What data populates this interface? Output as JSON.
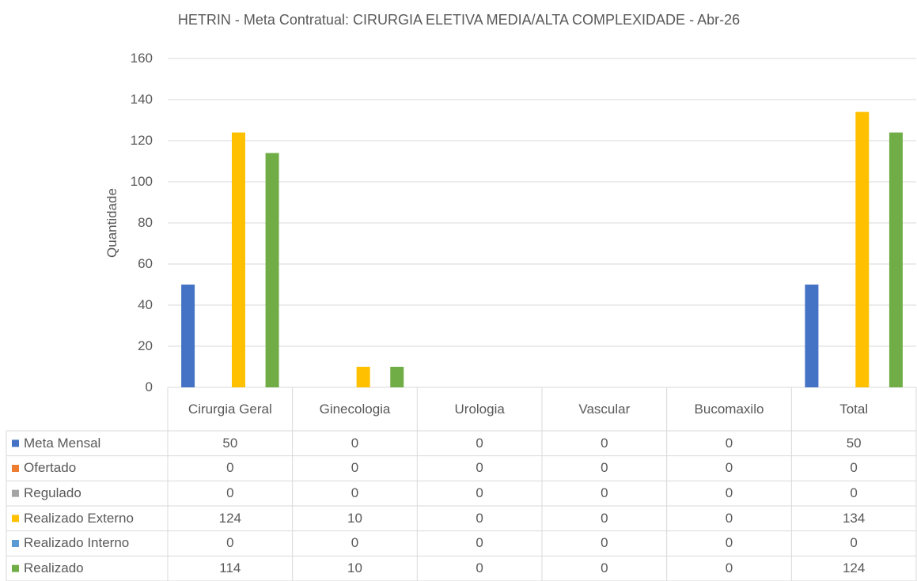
{
  "chart_data": {
    "type": "bar",
    "title": "HETRIN - Meta Contratual: CIRURGIA ELETIVA MEDIA/ALTA COMPLEXIDADE - Abr-26",
    "y_label": "Quantidade",
    "categories": [
      "Cirurgia Geral",
      "Ginecologia",
      "Urologia",
      "Vascular",
      "Bucomaxilo",
      "Total"
    ],
    "series": [
      {
        "name": "Meta Mensal",
        "color": "#4472c4",
        "values": [
          50,
          0,
          0,
          0,
          0,
          50
        ]
      },
      {
        "name": "Ofertado",
        "color": "#ed7d31",
        "values": [
          0,
          0,
          0,
          0,
          0,
          0
        ]
      },
      {
        "name": "Regulado",
        "color": "#a5a5a5",
        "values": [
          0,
          0,
          0,
          0,
          0,
          0
        ]
      },
      {
        "name": "Realizado Externo",
        "color": "#ffc000",
        "values": [
          124,
          10,
          0,
          0,
          0,
          134
        ]
      },
      {
        "name": "Realizado Interno",
        "color": "#5b9bd5",
        "values": [
          0,
          0,
          0,
          0,
          0,
          0
        ]
      },
      {
        "name": "Realizado",
        "color": "#70ad47",
        "values": [
          114,
          10,
          0,
          0,
          0,
          124
        ]
      }
    ],
    "ylim": [
      0,
      160
    ],
    "yticks": [
      0,
      20,
      40,
      60,
      80,
      100,
      120,
      140,
      160
    ],
    "grid": true,
    "data_table": true
  }
}
